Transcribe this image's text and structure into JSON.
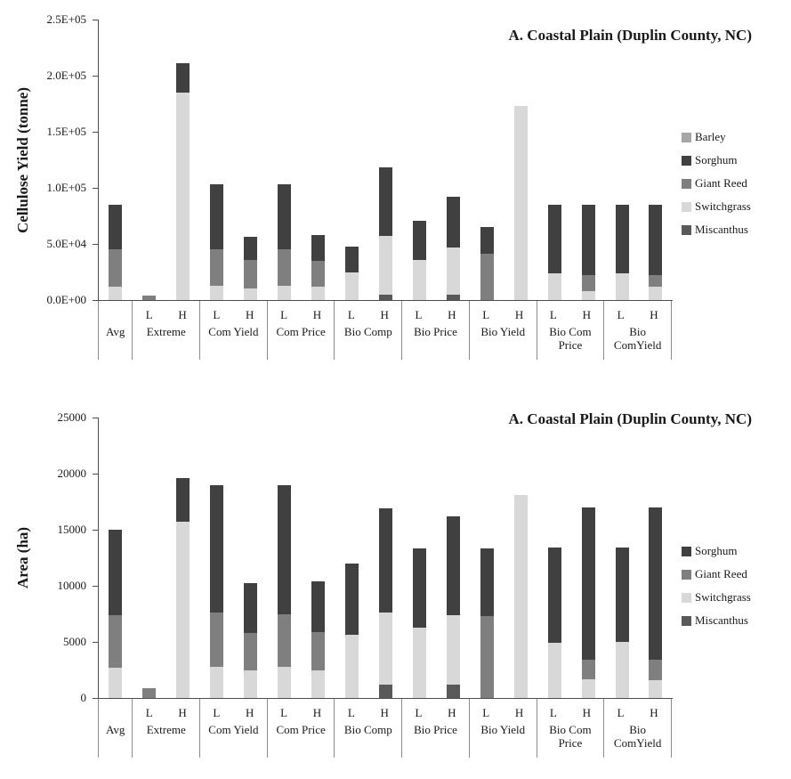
{
  "page": {
    "background": "#ffffff"
  },
  "colors": {
    "Barley": "#a6a6a6",
    "Sorghum": "#404040",
    "Giant Reed": "#7f7f7f",
    "Switchgrass": "#d8d8d8",
    "Miscanthus": "#595959"
  },
  "chart_data": [
    {
      "type": "bar",
      "stacked": true,
      "title": "A. Coastal Plain (Duplin County, NC)",
      "ylabel": "Cellulose Yield (tonne)",
      "xlabel": "",
      "ylim": [
        0,
        250000
      ],
      "ytick_step": 50000,
      "ytick_labels": [
        "0.0E+00",
        "5.0E+04",
        "1.0E+05",
        "1.5E+05",
        "2.0E+05",
        "2.5E+05"
      ],
      "legend_position": "right",
      "grid": false,
      "legend": [
        "Barley",
        "Sorghum",
        "Giant Reed",
        "Switchgrass",
        "Miscanthus"
      ],
      "groups": [
        {
          "label": "Avg",
          "bars": [
            {
              "tick": "",
              "segments": [
                {
                  "name": "Switchgrass",
                  "value": 12000
                },
                {
                  "name": "Giant Reed",
                  "value": 33000
                },
                {
                  "name": "Sorghum",
                  "value": 40000
                }
              ]
            }
          ]
        },
        {
          "label": "Extreme",
          "bars": [
            {
              "tick": "L",
              "segments": [
                {
                  "name": "Giant Reed",
                  "value": 4000
                }
              ]
            },
            {
              "tick": "H",
              "segments": [
                {
                  "name": "Switchgrass",
                  "value": 185000
                },
                {
                  "name": "Sorghum",
                  "value": 26000
                }
              ]
            }
          ]
        },
        {
          "label": "Com Yield",
          "bars": [
            {
              "tick": "L",
              "segments": [
                {
                  "name": "Switchgrass",
                  "value": 13000
                },
                {
                  "name": "Giant Reed",
                  "value": 32000
                },
                {
                  "name": "Sorghum",
                  "value": 58000
                }
              ]
            },
            {
              "tick": "H",
              "segments": [
                {
                  "name": "Switchgrass",
                  "value": 10000
                },
                {
                  "name": "Giant Reed",
                  "value": 26000
                },
                {
                  "name": "Sorghum",
                  "value": 20000
                }
              ]
            }
          ]
        },
        {
          "label": "Com Price",
          "bars": [
            {
              "tick": "L",
              "segments": [
                {
                  "name": "Switchgrass",
                  "value": 13000
                },
                {
                  "name": "Giant Reed",
                  "value": 32000
                },
                {
                  "name": "Sorghum",
                  "value": 58000
                }
              ]
            },
            {
              "tick": "H",
              "segments": [
                {
                  "name": "Switchgrass",
                  "value": 12000
                },
                {
                  "name": "Giant Reed",
                  "value": 23000
                },
                {
                  "name": "Sorghum",
                  "value": 23000
                }
              ]
            }
          ]
        },
        {
          "label": "Bio Comp",
          "bars": [
            {
              "tick": "L",
              "segments": [
                {
                  "name": "Switchgrass",
                  "value": 25000
                },
                {
                  "name": "Sorghum",
                  "value": 23000
                }
              ]
            },
            {
              "tick": "H",
              "segments": [
                {
                  "name": "Miscanthus",
                  "value": 5000
                },
                {
                  "name": "Switchgrass",
                  "value": 52000
                },
                {
                  "name": "Sorghum",
                  "value": 61000
                }
              ]
            }
          ]
        },
        {
          "label": "Bio Price",
          "bars": [
            {
              "tick": "L",
              "segments": [
                {
                  "name": "Switchgrass",
                  "value": 36000
                },
                {
                  "name": "Sorghum",
                  "value": 35000
                }
              ]
            },
            {
              "tick": "H",
              "segments": [
                {
                  "name": "Miscanthus",
                  "value": 5000
                },
                {
                  "name": "Switchgrass",
                  "value": 42000
                },
                {
                  "name": "Sorghum",
                  "value": 45000
                }
              ]
            }
          ]
        },
        {
          "label": "Bio Yield",
          "bars": [
            {
              "tick": "L",
              "segments": [
                {
                  "name": "Giant Reed",
                  "value": 41000
                },
                {
                  "name": "Sorghum",
                  "value": 24000
                }
              ]
            },
            {
              "tick": "H",
              "segments": [
                {
                  "name": "Switchgrass",
                  "value": 173000
                }
              ]
            }
          ]
        },
        {
          "label": "Bio Com\nPrice",
          "bars": [
            {
              "tick": "L",
              "segments": [
                {
                  "name": "Switchgrass",
                  "value": 24000
                },
                {
                  "name": "Sorghum",
                  "value": 61000
                }
              ]
            },
            {
              "tick": "H",
              "segments": [
                {
                  "name": "Switchgrass",
                  "value": 8000
                },
                {
                  "name": "Giant Reed",
                  "value": 14000
                },
                {
                  "name": "Sorghum",
                  "value": 63000
                }
              ]
            }
          ]
        },
        {
          "label": "Bio\nComYield",
          "bars": [
            {
              "tick": "L",
              "segments": [
                {
                  "name": "Switchgrass",
                  "value": 24000
                },
                {
                  "name": "Sorghum",
                  "value": 61000
                }
              ]
            },
            {
              "tick": "H",
              "segments": [
                {
                  "name": "Switchgrass",
                  "value": 12000
                },
                {
                  "name": "Giant Reed",
                  "value": 10000
                },
                {
                  "name": "Sorghum",
                  "value": 63000
                }
              ]
            }
          ]
        }
      ]
    },
    {
      "type": "bar",
      "stacked": true,
      "title": "A. Coastal Plain (Duplin County, NC)",
      "ylabel": "Area (ha)",
      "xlabel": "",
      "ylim": [
        0,
        25000
      ],
      "ytick_step": 5000,
      "ytick_labels": [
        "0",
        "5000",
        "10000",
        "15000",
        "20000",
        "25000"
      ],
      "legend_position": "right",
      "grid": false,
      "legend": [
        "Sorghum",
        "Giant Reed",
        "Switchgrass",
        "Miscanthus"
      ],
      "groups": [
        {
          "label": "Avg",
          "bars": [
            {
              "tick": "",
              "segments": [
                {
                  "name": "Switchgrass",
                  "value": 2700
                },
                {
                  "name": "Giant Reed",
                  "value": 4700
                },
                {
                  "name": "Sorghum",
                  "value": 7600
                }
              ]
            }
          ]
        },
        {
          "label": "Extreme",
          "bars": [
            {
              "tick": "L",
              "segments": [
                {
                  "name": "Giant Reed",
                  "value": 900
                }
              ]
            },
            {
              "tick": "H",
              "segments": [
                {
                  "name": "Switchgrass",
                  "value": 15700
                },
                {
                  "name": "Sorghum",
                  "value": 3900
                }
              ]
            }
          ]
        },
        {
          "label": "Com Yield",
          "bars": [
            {
              "tick": "L",
              "segments": [
                {
                  "name": "Switchgrass",
                  "value": 2800
                },
                {
                  "name": "Giant Reed",
                  "value": 4800
                },
                {
                  "name": "Sorghum",
                  "value": 11400
                }
              ]
            },
            {
              "tick": "H",
              "segments": [
                {
                  "name": "Switchgrass",
                  "value": 2500
                },
                {
                  "name": "Giant Reed",
                  "value": 3300
                },
                {
                  "name": "Sorghum",
                  "value": 4400
                }
              ]
            }
          ]
        },
        {
          "label": "Com Price",
          "bars": [
            {
              "tick": "L",
              "segments": [
                {
                  "name": "Switchgrass",
                  "value": 2800
                },
                {
                  "name": "Giant Reed",
                  "value": 4700
                },
                {
                  "name": "Sorghum",
                  "value": 11500
                }
              ]
            },
            {
              "tick": "H",
              "segments": [
                {
                  "name": "Switchgrass",
                  "value": 2500
                },
                {
                  "name": "Giant Reed",
                  "value": 3400
                },
                {
                  "name": "Sorghum",
                  "value": 4500
                }
              ]
            }
          ]
        },
        {
          "label": "Bio Comp",
          "bars": [
            {
              "tick": "L",
              "segments": [
                {
                  "name": "Switchgrass",
                  "value": 5600
                },
                {
                  "name": "Sorghum",
                  "value": 6400
                }
              ]
            },
            {
              "tick": "H",
              "segments": [
                {
                  "name": "Miscanthus",
                  "value": 1200
                },
                {
                  "name": "Switchgrass",
                  "value": 6400
                },
                {
                  "name": "Sorghum",
                  "value": 9300
                }
              ]
            }
          ]
        },
        {
          "label": "Bio Price",
          "bars": [
            {
              "tick": "L",
              "segments": [
                {
                  "name": "Switchgrass",
                  "value": 6300
                },
                {
                  "name": "Sorghum",
                  "value": 7000
                }
              ]
            },
            {
              "tick": "H",
              "segments": [
                {
                  "name": "Miscanthus",
                  "value": 1200
                },
                {
                  "name": "Switchgrass",
                  "value": 6200
                },
                {
                  "name": "Sorghum",
                  "value": 8800
                }
              ]
            }
          ]
        },
        {
          "label": "Bio Yield",
          "bars": [
            {
              "tick": "L",
              "segments": [
                {
                  "name": "Giant Reed",
                  "value": 7300
                },
                {
                  "name": "Sorghum",
                  "value": 6000
                }
              ]
            },
            {
              "tick": "H",
              "segments": [
                {
                  "name": "Switchgrass",
                  "value": 18100
                }
              ]
            }
          ]
        },
        {
          "label": "Bio Com\nPrice",
          "bars": [
            {
              "tick": "L",
              "segments": [
                {
                  "name": "Switchgrass",
                  "value": 4900
                },
                {
                  "name": "Sorghum",
                  "value": 8500
                }
              ]
            },
            {
              "tick": "H",
              "segments": [
                {
                  "name": "Switchgrass",
                  "value": 1700
                },
                {
                  "name": "Giant Reed",
                  "value": 1700
                },
                {
                  "name": "Sorghum",
                  "value": 13600
                }
              ]
            }
          ]
        },
        {
          "label": "Bio\nComYield",
          "bars": [
            {
              "tick": "L",
              "segments": [
                {
                  "name": "Switchgrass",
                  "value": 5000
                },
                {
                  "name": "Sorghum",
                  "value": 8400
                }
              ]
            },
            {
              "tick": "H",
              "segments": [
                {
                  "name": "Switchgrass",
                  "value": 1600
                },
                {
                  "name": "Giant Reed",
                  "value": 1800
                },
                {
                  "name": "Sorghum",
                  "value": 13600
                }
              ]
            }
          ]
        }
      ]
    }
  ]
}
